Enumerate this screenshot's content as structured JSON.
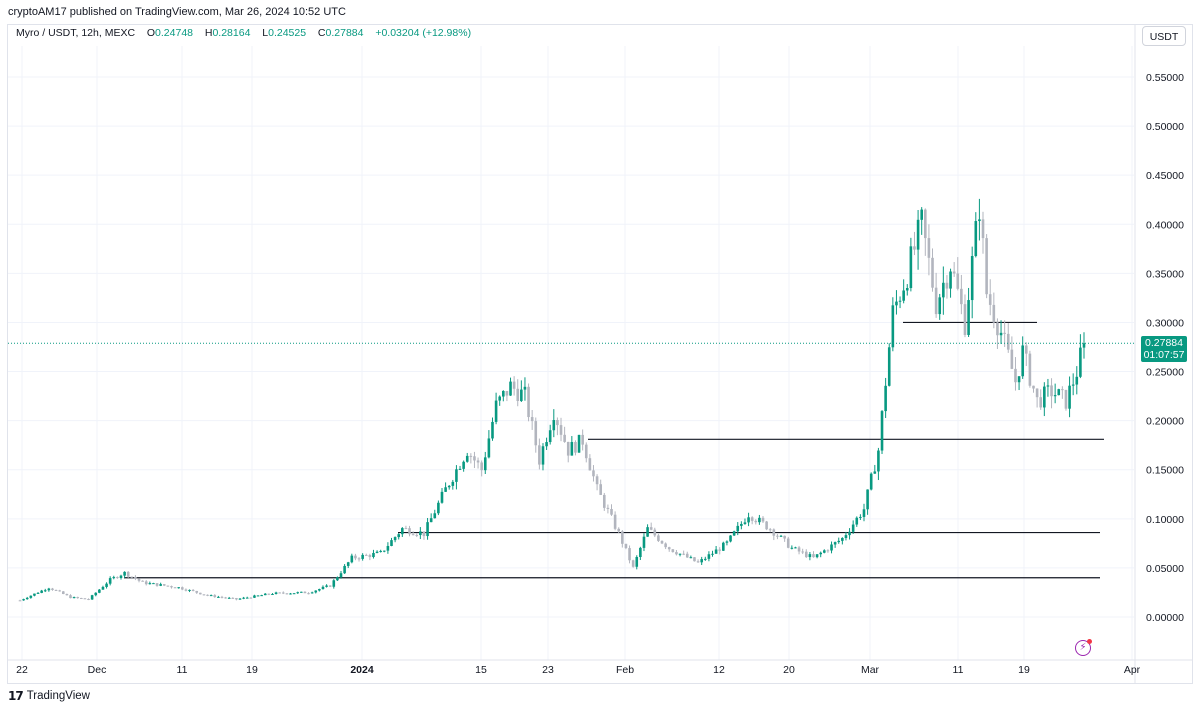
{
  "header": {
    "published": "cryptoAM17 published on TradingView.com, Mar 26, 2024 10:52 UTC"
  },
  "legend": {
    "symbol": "Myro / USDT, 12h, MEXC",
    "o_label": "O",
    "o_value": "0.24748",
    "h_label": "H",
    "h_value": "0.28164",
    "l_label": "L",
    "l_value": "0.24525",
    "c_label": "C",
    "c_value": "0.27884",
    "change": "+0.03204 (+12.98%)"
  },
  "currency_button": "USDT",
  "price_tag": {
    "price": "0.27884",
    "countdown": "01:07:57"
  },
  "footer": {
    "brand": "TradingView"
  },
  "colors": {
    "up": "#089981",
    "down": "#b2b5be",
    "line": "#131722",
    "grid": "#f0f3fa",
    "accent": "#9c27b0"
  },
  "chart_data": {
    "type": "candlestick",
    "y_axis": {
      "ticks": [
        "0.55000",
        "0.50000",
        "0.45000",
        "0.40000",
        "0.35000",
        "0.30000",
        "0.25000",
        "0.20000",
        "0.15000",
        "0.10000",
        "0.05000",
        "0.00000"
      ],
      "ylim": [
        -0.03,
        0.58
      ]
    },
    "x_axis": {
      "ticks": [
        "22",
        "Dec",
        "11",
        "19",
        "2024",
        "15",
        "23",
        "Feb",
        "12",
        "20",
        "Mar",
        "11",
        "19",
        "Apr"
      ]
    },
    "last_price": 0.27884,
    "horizontal_levels": [
      {
        "price": 0.3
      },
      {
        "price": 0.181
      },
      {
        "price": 0.086
      },
      {
        "price": 0.04
      }
    ],
    "anchors": [
      [
        0,
        0.017
      ],
      [
        8,
        0.03
      ],
      [
        14,
        0.02
      ],
      [
        19,
        0.018
      ],
      [
        25,
        0.038
      ],
      [
        29,
        0.045
      ],
      [
        34,
        0.035
      ],
      [
        44,
        0.03
      ],
      [
        52,
        0.022
      ],
      [
        60,
        0.018
      ],
      [
        70,
        0.024
      ],
      [
        80,
        0.025
      ],
      [
        86,
        0.032
      ],
      [
        92,
        0.06
      ],
      [
        100,
        0.065
      ],
      [
        106,
        0.09
      ],
      [
        112,
        0.085
      ],
      [
        118,
        0.13
      ],
      [
        124,
        0.17
      ],
      [
        128,
        0.15
      ],
      [
        132,
        0.215
      ],
      [
        136,
        0.235
      ],
      [
        140,
        0.225
      ],
      [
        144,
        0.16
      ],
      [
        148,
        0.21
      ],
      [
        152,
        0.17
      ],
      [
        156,
        0.18
      ],
      [
        160,
        0.13
      ],
      [
        166,
        0.085
      ],
      [
        170,
        0.05
      ],
      [
        174,
        0.09
      ],
      [
        180,
        0.07
      ],
      [
        188,
        0.055
      ],
      [
        196,
        0.075
      ],
      [
        202,
        0.105
      ],
      [
        208,
        0.09
      ],
      [
        214,
        0.07
      ],
      [
        220,
        0.06
      ],
      [
        228,
        0.08
      ],
      [
        234,
        0.11
      ],
      [
        238,
        0.17
      ],
      [
        242,
        0.31
      ],
      [
        246,
        0.35
      ],
      [
        250,
        0.4
      ],
      [
        254,
        0.32
      ],
      [
        258,
        0.36
      ],
      [
        262,
        0.3
      ],
      [
        266,
        0.42
      ],
      [
        268,
        0.33
      ],
      [
        272,
        0.29
      ],
      [
        276,
        0.24
      ],
      [
        278,
        0.27
      ],
      [
        282,
        0.22
      ],
      [
        286,
        0.23
      ],
      [
        290,
        0.22
      ],
      [
        293,
        0.25
      ],
      [
        295,
        0.2788
      ]
    ]
  }
}
